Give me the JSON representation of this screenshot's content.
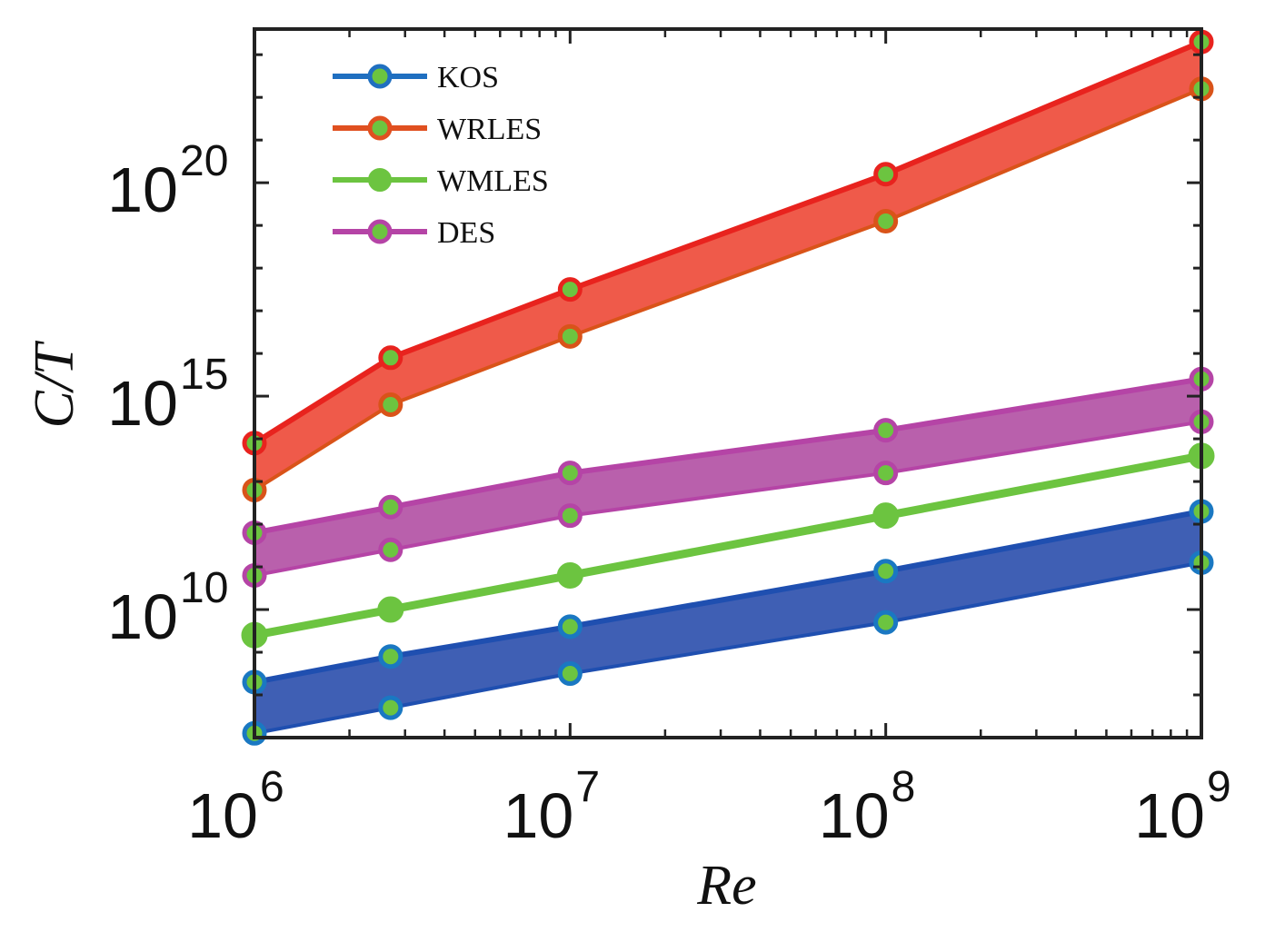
{
  "chart_data": {
    "type": "line",
    "xscale": "log",
    "yscale": "log",
    "xlim": [
      1000000,
      1000000000
    ],
    "ylim_exp": [
      7,
      23.6
    ],
    "xlabel": "Re",
    "ylabel": "C/T",
    "x": [
      1000000,
      2700000,
      10000000,
      100000000,
      1000000000
    ],
    "x_ticks": [
      {
        "value": 1000000,
        "base": "10",
        "exp": "6"
      },
      {
        "value": 10000000,
        "base": "10",
        "exp": "7"
      },
      {
        "value": 100000000,
        "base": "10",
        "exp": "8"
      },
      {
        "value": 1000000000,
        "base": "10",
        "exp": "9"
      }
    ],
    "y_ticks": [
      {
        "value_exp": 10,
        "base": "10",
        "exp": "10"
      },
      {
        "value_exp": 15,
        "base": "10",
        "exp": "15"
      },
      {
        "value_exp": 20,
        "base": "10",
        "exp": "20"
      }
    ],
    "series": [
      {
        "name": "KOS",
        "color": "#1f4fb0",
        "fill": "#3f5fb4",
        "marker_edge": "#1a78c2",
        "upper_exp": [
          8.3,
          8.9,
          9.6,
          10.9,
          12.3
        ],
        "lower_exp": [
          7.1,
          7.7,
          8.5,
          9.7,
          11.1
        ]
      },
      {
        "name": "WRLES",
        "color": "#e8231e",
        "fill": "#ef5a4a",
        "marker_edge": "#e8231e",
        "lower_edge": "#d95319",
        "upper_exp": [
          13.9,
          15.9,
          17.5,
          20.2,
          23.3
        ],
        "lower_exp": [
          12.8,
          14.8,
          16.4,
          19.1,
          22.2
        ]
      },
      {
        "name": "WMLES",
        "color": "#6cc440",
        "marker_edge": "#6cc440",
        "values_exp": [
          9.4,
          10.0,
          10.8,
          12.2,
          13.6
        ]
      },
      {
        "name": "DES",
        "color": "#b544a6",
        "fill": "#b960ac",
        "marker_edge": "#b544a6",
        "upper_exp": [
          11.8,
          12.4,
          13.2,
          14.2,
          15.4
        ],
        "lower_exp": [
          10.8,
          11.4,
          12.2,
          13.2,
          14.4
        ]
      }
    ],
    "marker_fill": "#6cc440",
    "legend": [
      {
        "label": "KOS",
        "color": "#1f6fc0"
      },
      {
        "label": "WRLES",
        "color": "#e05020"
      },
      {
        "label": "WMLES",
        "color": "#6cc440"
      },
      {
        "label": "DES",
        "color": "#b544a6"
      }
    ],
    "legend_position": "top-left"
  }
}
